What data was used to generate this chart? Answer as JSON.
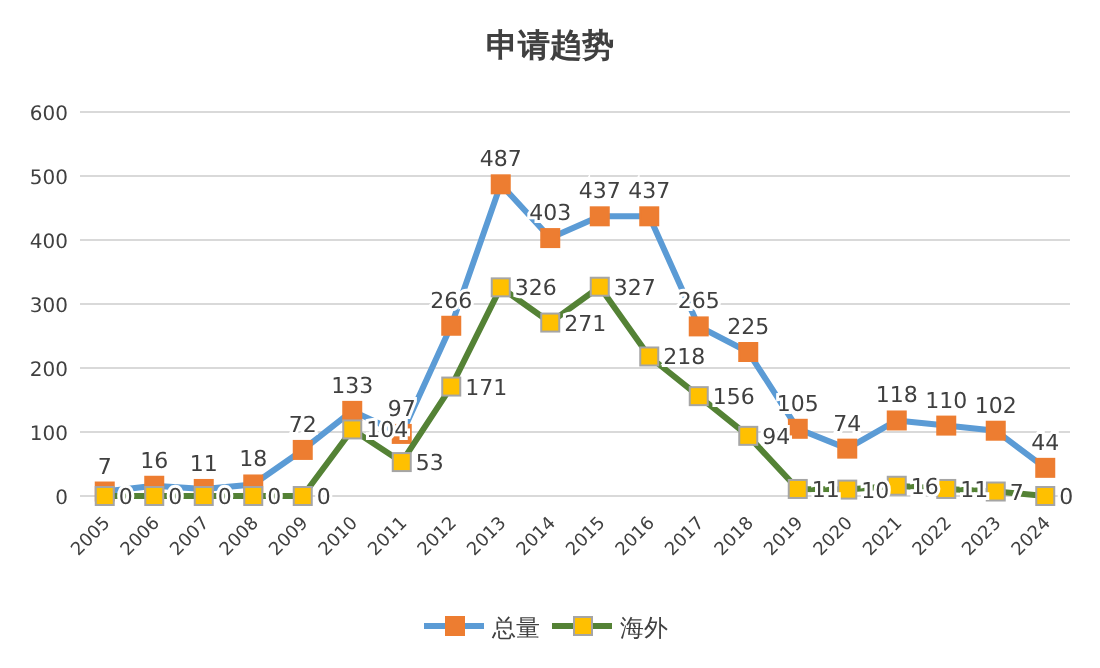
{
  "chart_data": {
    "type": "line",
    "title": "申请趋势",
    "categories": [
      "2005",
      "2006",
      "2007",
      "2008",
      "2009",
      "2010",
      "2011",
      "2012",
      "2013",
      "2014",
      "2015",
      "2016",
      "2017",
      "2018",
      "2019",
      "2020",
      "2021",
      "2022",
      "2023",
      "2024"
    ],
    "series": [
      {
        "name": "总量",
        "color": "#5b9bd5",
        "colors": [
          "#ed7d31",
          "#ed7d31",
          "#ed7d31",
          "#ed7d31",
          "#ed7d31",
          "#ed7d31",
          "#ed7d31",
          "#ed7d31",
          "#ed7d31",
          "#ed7d31",
          "#ed7d31",
          "#ed7d31",
          "#ed7d31",
          "#ed7d31",
          "#ed7d31",
          "#ed7d31",
          "#ed7d31",
          "#ed7d31",
          "#ed7d31",
          "#ed7d31"
        ],
        "values": [
          7,
          16,
          11,
          18,
          72,
          133,
          97,
          266,
          487,
          403,
          437,
          437,
          265,
          225,
          105,
          74,
          118,
          110,
          102,
          44
        ]
      },
      {
        "name": "海外",
        "color": "#548235",
        "colors": [
          "#ffc000",
          "#ffc000",
          "#ffc000",
          "#ffc000",
          "#ffc000",
          "#ffc000",
          "#ffc000",
          "#ffc000",
          "#ffc000",
          "#ffc000",
          "#ffc000",
          "#ffc000",
          "#ffc000",
          "#ffc000",
          "#ffc000",
          "#ffc000",
          "#ffc000",
          "#ffc000",
          "#ffc000",
          "#ffc000"
        ],
        "values": [
          0,
          0,
          0,
          0,
          0,
          104,
          53,
          171,
          326,
          271,
          327,
          218,
          156,
          94,
          11,
          10,
          16,
          11,
          7,
          0
        ]
      }
    ],
    "ylim": [
      0,
      600
    ],
    "yticks": [
      0,
      100,
      200,
      300,
      400,
      500,
      600
    ],
    "grid": "y",
    "legend": "bottom",
    "marker": "square",
    "line_style": "solid",
    "data_labels": true
  }
}
